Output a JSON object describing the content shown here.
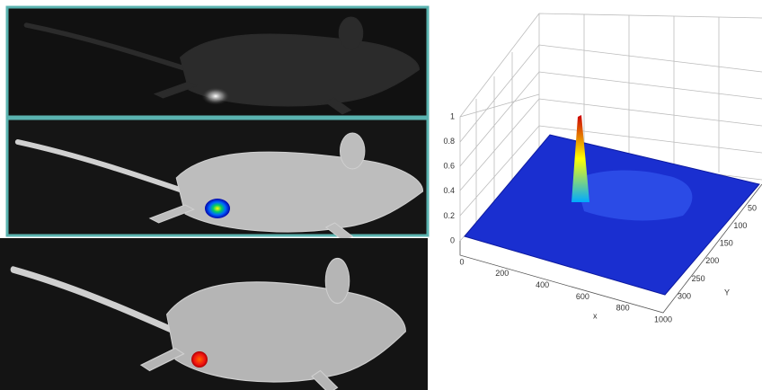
{
  "plot": {
    "zticks": [
      0,
      0.2,
      0.4,
      0.6,
      0.8,
      1
    ],
    "xticks": [
      0,
      200,
      400,
      600,
      800,
      1000
    ],
    "yticks": [
      50,
      100,
      150,
      200,
      250,
      300
    ],
    "xlabel": "x",
    "ylabel": "Y"
  }
}
